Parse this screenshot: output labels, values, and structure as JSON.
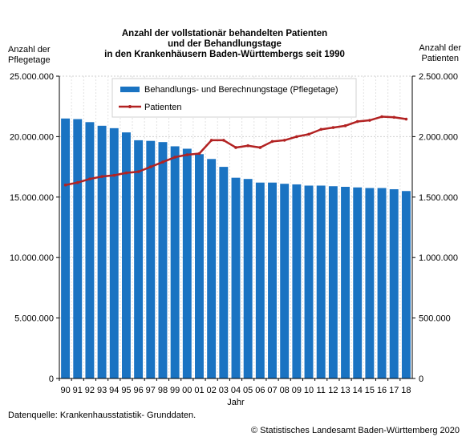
{
  "chart_data": {
    "type": "bar+line",
    "title_lines": [
      "Anzahl der vollstationär behandelten Patienten",
      "und der Behandlungstage",
      "in den Krankenhäusern Baden-Württembergs seit 1990"
    ],
    "ylabel_left_lines": [
      "Anzahl der",
      "Pflegetage"
    ],
    "ylabel_right_lines": [
      "Anzahl der",
      "Patienten"
    ],
    "xlabel": "Jahr",
    "categories": [
      "90",
      "91",
      "92",
      "93",
      "94",
      "95",
      "96",
      "97",
      "98",
      "99",
      "00",
      "01",
      "02",
      "03",
      "04",
      "05",
      "06",
      "07",
      "08",
      "09",
      "10",
      "11",
      "12",
      "13",
      "14",
      "15",
      "16",
      "17",
      "18"
    ],
    "y_left": {
      "min": 0,
      "max": 25000000,
      "ticks": [
        0,
        5000000,
        10000000,
        15000000,
        20000000,
        25000000
      ],
      "tick_labels": [
        "0",
        "5.000.000",
        "10.000.000",
        "15.000.000",
        "20.000.000",
        "25.000.000"
      ]
    },
    "y_right": {
      "min": 0,
      "max": 2500000,
      "ticks": [
        0,
        500000,
        1000000,
        1500000,
        2000000,
        2500000
      ],
      "tick_labels": [
        "0",
        "500.000",
        "1.000.000",
        "1.500.000",
        "2.000.000",
        "2.500.000"
      ]
    },
    "grid": true,
    "legend_position": "top",
    "series": [
      {
        "name": "Behandlungs- und Berechnungstage (Pflegetage)",
        "kind": "bar",
        "axis": "left",
        "color": "#1a73c2",
        "values": [
          21500000,
          21450000,
          21200000,
          20900000,
          20700000,
          20350000,
          19700000,
          19650000,
          19550000,
          19200000,
          19000000,
          18550000,
          18150000,
          17500000,
          16600000,
          16500000,
          16200000,
          16200000,
          16100000,
          16050000,
          15950000,
          15950000,
          15900000,
          15850000,
          15800000,
          15750000,
          15750000,
          15650000,
          15500000
        ]
      },
      {
        "name": "Patienten",
        "kind": "line",
        "axis": "right",
        "color": "#b22222",
        "values": [
          1600000,
          1620000,
          1650000,
          1670000,
          1680000,
          1700000,
          1710000,
          1750000,
          1790000,
          1830000,
          1850000,
          1860000,
          1970000,
          1970000,
          1910000,
          1925000,
          1910000,
          1960000,
          1970000,
          2000000,
          2020000,
          2060000,
          2075000,
          2090000,
          2125000,
          2135000,
          2165000,
          2160000,
          2145000
        ]
      }
    ]
  },
  "footer": {
    "source": "Datenquelle: Krankenhausstatistik- Grunddaten.",
    "copyright": "© Statistisches Landesamt Baden-Württemberg 2020"
  }
}
